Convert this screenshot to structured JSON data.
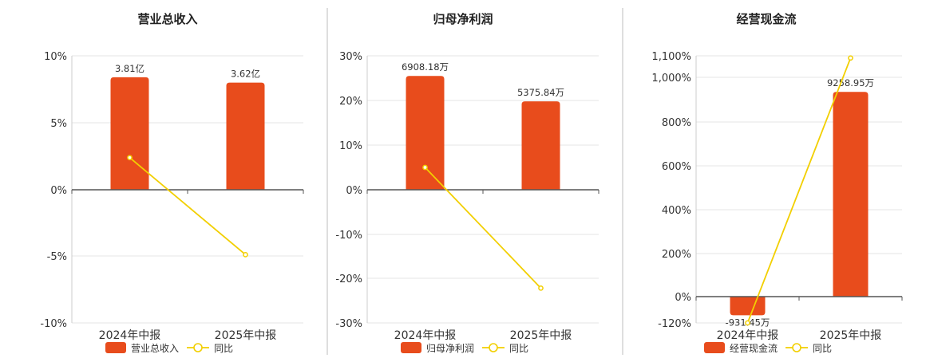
{
  "colors": {
    "bar": "#e84c1c",
    "line": "#f2cf00",
    "grid": "#e6e6e6",
    "axis": "#555555",
    "divider": "#bdbdbd",
    "text": "#333333"
  },
  "chart_data": [
    {
      "type": "bar",
      "title": "营业总收入",
      "categories": [
        "2024年中报",
        "2025年中报"
      ],
      "series": [
        {
          "name": "营业总收入",
          "kind": "bar",
          "values": [
            3.81,
            3.62
          ],
          "value_labels": [
            "3.81亿",
            "3.62亿"
          ],
          "unit": "亿"
        },
        {
          "name": "同比",
          "kind": "line",
          "axis": "percent",
          "values": [
            2.4,
            -4.9
          ]
        }
      ],
      "y_ticks": [
        "10%",
        "5%",
        "0%",
        "-5%",
        "-10%"
      ],
      "y_tick_values": [
        10,
        5,
        0,
        -5,
        -10
      ],
      "ylim": [
        -10,
        10
      ],
      "bar_display_values": [
        8.4,
        8.0
      ],
      "legend": [
        "营业总收入",
        "同比"
      ],
      "legend_position": "bottom"
    },
    {
      "type": "bar",
      "title": "归母净利润",
      "categories": [
        "2024年中报",
        "2025年中报"
      ],
      "series": [
        {
          "name": "归母净利润",
          "kind": "bar",
          "values": [
            6908.18,
            5375.84
          ],
          "value_labels": [
            "6908.18万",
            "5375.84万"
          ],
          "unit": "万"
        },
        {
          "name": "同比",
          "kind": "line",
          "axis": "percent",
          "values": [
            5.0,
            -22.2
          ]
        }
      ],
      "y_ticks": [
        "30%",
        "20%",
        "10%",
        "0%",
        "-10%",
        "-20%",
        "-30%"
      ],
      "y_tick_values": [
        30,
        20,
        10,
        0,
        -10,
        -20,
        -30
      ],
      "ylim": [
        -30,
        30
      ],
      "bar_display_values": [
        25.5,
        19.8
      ],
      "legend": [
        "归母净利润",
        "同比"
      ],
      "legend_position": "bottom"
    },
    {
      "type": "bar",
      "title": "经营现金流",
      "categories": [
        "2024年中报",
        "2025年中报"
      ],
      "series": [
        {
          "name": "经营现金流",
          "kind": "bar",
          "values": [
            -931.45,
            9258.95
          ],
          "value_labels": [
            "-931.45万",
            "9258.95万"
          ],
          "unit": "万"
        },
        {
          "name": "同比",
          "kind": "line",
          "axis": "percent",
          "values": [
            -120,
            1090
          ]
        }
      ],
      "y_ticks": [
        "1,100%",
        "1,000%",
        "800%",
        "600%",
        "400%",
        "200%",
        "0%",
        "-120%"
      ],
      "y_tick_values": [
        1100,
        1000,
        800,
        600,
        400,
        200,
        0,
        -120
      ],
      "ylim": [
        -120,
        1100
      ],
      "bar_display_values": [
        -85,
        935
      ],
      "legend": [
        "经营现金流",
        "同比"
      ],
      "legend_position": "bottom"
    }
  ]
}
